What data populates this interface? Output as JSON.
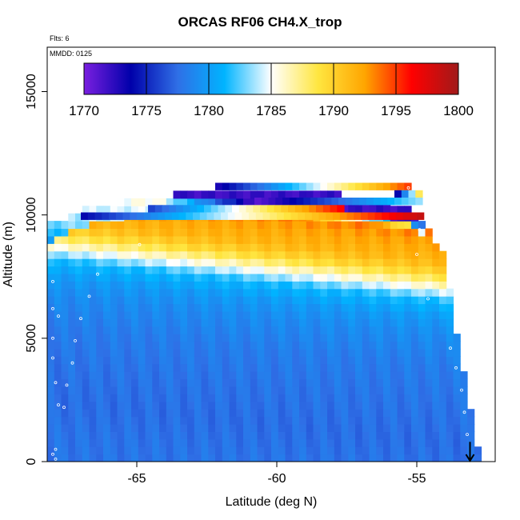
{
  "chart_data": {
    "type": "heatmap",
    "title": "ORCAS RF06 CH4.X_trop",
    "annotations": {
      "flights": "Flts: 6",
      "date": "MMDD: 0125"
    },
    "xlabel": "Latitude (deg N)",
    "ylabel": "Altitude (m)",
    "xlim": [
      -68.2,
      -52.2
    ],
    "ylim": [
      0,
      16800
    ],
    "x_ticks": [
      -65,
      -60,
      -55
    ],
    "x_tick_labels": [
      "-65",
      "-60",
      "-55"
    ],
    "y_ticks": [
      0,
      5000,
      10000,
      15000
    ],
    "y_tick_labels": [
      "0",
      "5000",
      "10000",
      "15000"
    ],
    "colorbar": {
      "min": 1770,
      "max": 1800,
      "ticks": [
        1770,
        1775,
        1780,
        1785,
        1790,
        1795,
        1800
      ],
      "tick_labels": [
        "1770",
        "1775",
        "1780",
        "1785",
        "1790",
        "1795",
        "1800"
      ],
      "colors": [
        "#7a1fe0",
        "#0000aa",
        "#2f6fe6",
        "#00b4ff",
        "#ffffff",
        "#ffe640",
        "#ffa500",
        "#ff0000",
        "#a01a1a"
      ]
    },
    "grid": {
      "lat_bin_deg": 0.25,
      "alt_bin_m": 305
    },
    "profile_latitudes": [
      -68.1,
      -67.3,
      -66.5,
      -66.0,
      -64.0,
      -60.0,
      -56.0,
      -54.6,
      -53.9,
      -53.5,
      -53.1
    ],
    "top_altitudes": [
      9400,
      9800,
      10100,
      10300,
      10500,
      10650,
      10800,
      10850,
      10800,
      10600,
      10300,
      9600,
      8100,
      6000,
      4000,
      2200,
      200
    ],
    "top_alt_latitudes": [
      -68.2,
      -67.5,
      -66.8,
      -66.0,
      -65.0,
      -64.0,
      -62.5,
      -61.0,
      -59.0,
      -57.0,
      -55.5,
      -54.8,
      -54.0,
      -53.7,
      -53.4,
      -53.1,
      -52.8
    ],
    "vertical_profile": {
      "altitudes": [
        0,
        1500,
        3000,
        4500,
        5800,
        6500,
        7200,
        7800,
        8300,
        8800,
        9200,
        9600,
        10000,
        10400
      ],
      "values": [
        1777.8,
        1777.5,
        1777.8,
        1778.2,
        1779.0,
        1779.8,
        1781.5,
        1786,
        1789.5,
        1791.5,
        1792,
        1792.5,
        1793.5,
        1780
      ]
    },
    "upper_layers": [
      {
        "altitude": 11150,
        "lat_start": -62.2,
        "lat_end": -55.4,
        "values_from": 1773,
        "values_to": 1795
      },
      {
        "altitude": 10850,
        "lat_start": -55.8,
        "lat_end": -54.8,
        "values_from": 1774,
        "values_to": 1793
      },
      {
        "altitude": 10550,
        "lat_start": -60.8,
        "lat_end": -54.8,
        "values_from": 1771,
        "values_to": 1784
      },
      {
        "altitude": 10250,
        "lat_start": -64.6,
        "lat_end": -57.6,
        "values_from": 1776,
        "values_to": 1797
      },
      {
        "altitude": 9950,
        "lat_start": -67.0,
        "lat_end": -54.8,
        "values_from": 1774,
        "values_to": 1799
      }
    ]
  }
}
